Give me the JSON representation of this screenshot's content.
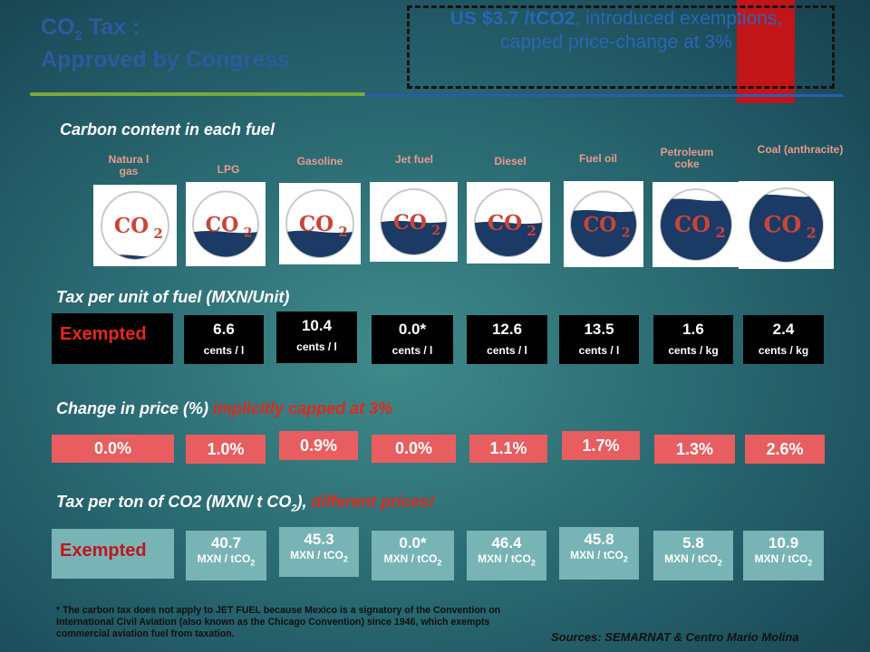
{
  "title": {
    "line1_pre": "CO",
    "line1_sub": "2",
    "line1_post": " Tax :",
    "line2": "Approved by Congress"
  },
  "callout": {
    "bold": "US $3.7 /tCO2",
    "rest": ", introduced exemptions, capped price-change at 3%"
  },
  "carbon_heading": "Carbon content in each fuel",
  "co2_text": "CO",
  "co2_sub": "2",
  "fuels": [
    {
      "label": "Natura l gas",
      "fill": 0.05
    },
    {
      "label": "LPG",
      "fill": 0.38
    },
    {
      "label": "Gasoline",
      "fill": 0.38
    },
    {
      "label": "Jet fuel",
      "fill": 0.5
    },
    {
      "label": "Diesel",
      "fill": 0.5
    },
    {
      "label": "Fuel oil",
      "fill": 0.7
    },
    {
      "label": "Petroleum coke",
      "fill": 0.85
    },
    {
      "label": "Coal (anthracite)",
      "fill": 0.9
    }
  ],
  "tax_unit_heading": "Tax per unit of fuel (MXN/Unit)",
  "exempted": "Exempted",
  "tax_unit": [
    {
      "value": "6.6",
      "unit": "cents / l"
    },
    {
      "value": "10.4",
      "unit": "cents / l"
    },
    {
      "value": "0.0*",
      "unit": "cents / l"
    },
    {
      "value": "12.6",
      "unit": "cents / l"
    },
    {
      "value": "13.5",
      "unit": "cents / l"
    },
    {
      "value": "1.6",
      "unit": "cents / kg"
    },
    {
      "value": "2.4",
      "unit": "cents / kg"
    }
  ],
  "price_heading": "Change in price (%)",
  "price_heading_red": "implicitly capped at 3%",
  "price_change": [
    "0.0%",
    "1.0%",
    "0.9%",
    "0.0%",
    "1.1%",
    "1.7%",
    "1.3%",
    "2.6%"
  ],
  "tax_ton_heading_pre": "Tax per ton of CO2 (MXN/ t CO",
  "tax_ton_heading_sub": "2",
  "tax_ton_heading_post": "),",
  "tax_ton_heading_red": "different prices!",
  "tax_ton_unit_pre": "MXN / tCO",
  "tax_ton_unit_sub": "2",
  "tax_ton": [
    "40.7",
    "45.3",
    "0.0*",
    "46.4",
    "45.8",
    "5.8",
    "10.9"
  ],
  "footnote": "* The carbon tax does not apply to JET FUEL because Mexico is a signatory of the Convention on International Civil Aviation  (also known as the Chicago Convention) since 1946, which exempts commercial aviation fuel from taxation.",
  "sources": "Sources: SEMARNAT & Centro Mario Molina",
  "colors": {
    "title_blue": "#2d5a9e",
    "red": "#e3281c",
    "pct_box": "#e85d5f",
    "teal_box": "#78b4b6",
    "circle_fill": "#1b3a66",
    "co2_red": "#c8453a"
  }
}
